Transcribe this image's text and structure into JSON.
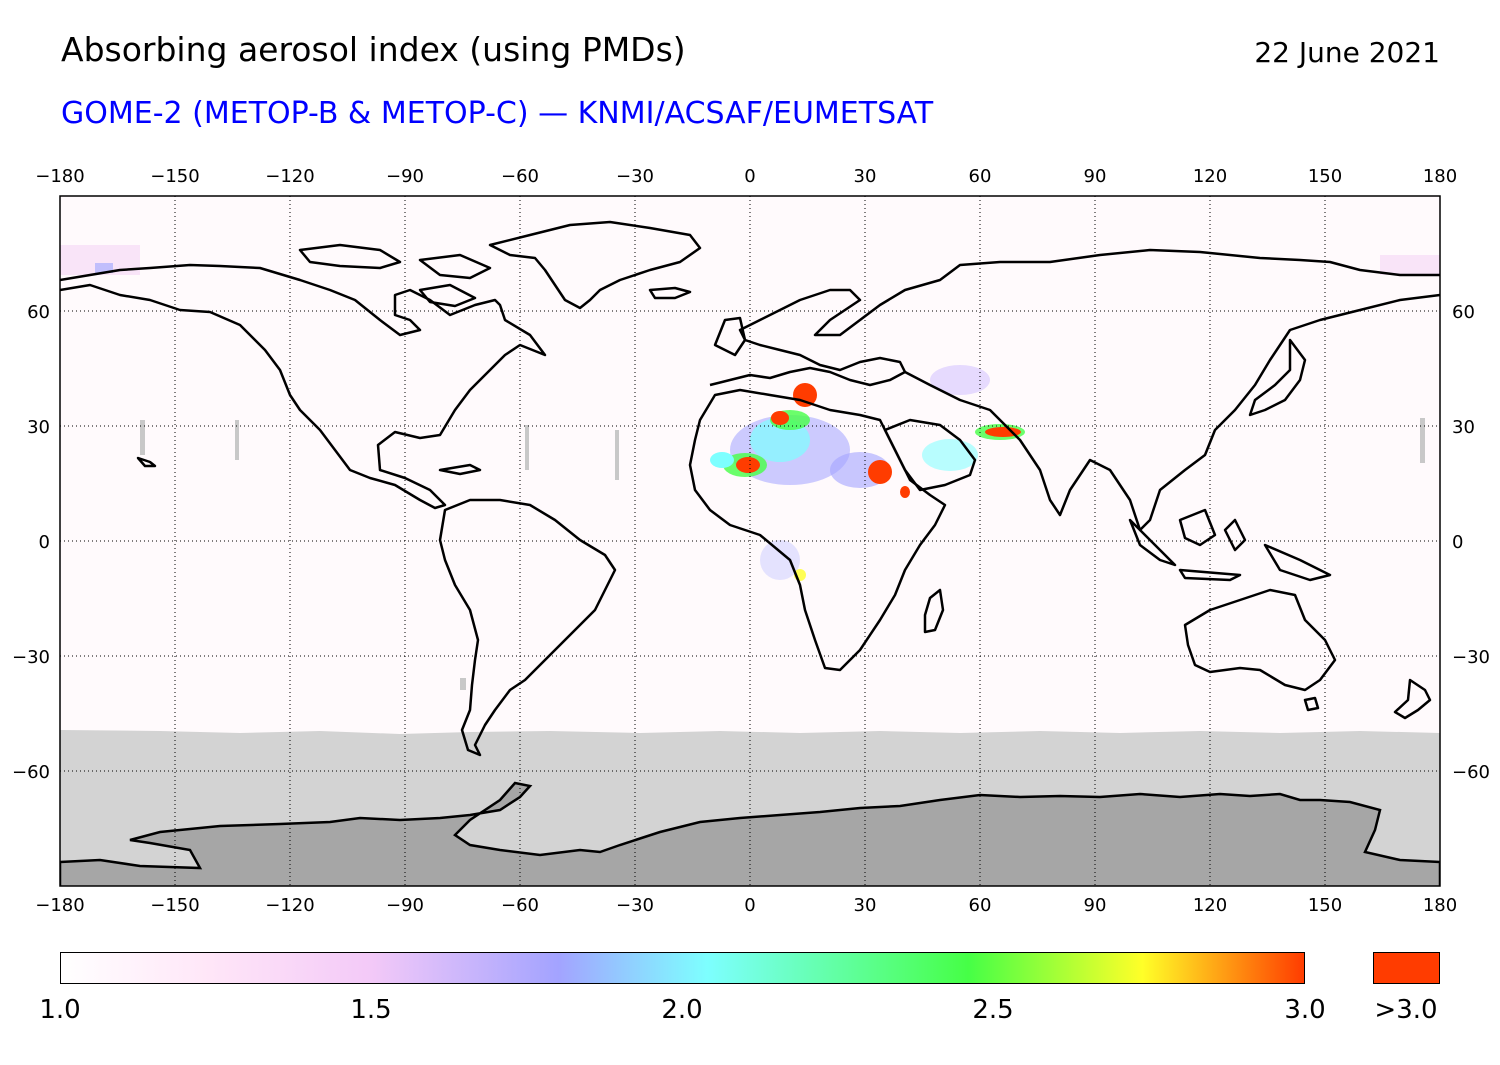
{
  "header": {
    "title": "Absorbing aerosol index (using PMDs)",
    "date": "22 June 2021",
    "subtitle": "GOME-2 (METOP-B & METOP-C) — KNMI/ACSAF/EUMETSAT"
  },
  "map": {
    "projection": "equirectangular",
    "lon_range": [
      -180,
      180
    ],
    "lat_range": [
      -90,
      90
    ],
    "lon_ticks": [
      "−180",
      "−150",
      "−120",
      "−90",
      "−60",
      "−30",
      "0",
      "30",
      "60",
      "90",
      "120",
      "150",
      "180"
    ],
    "lat_ticks": [
      "60",
      "30",
      "0",
      "−30",
      "−60"
    ],
    "grid": "dotted",
    "no_data_color": "#d3d3d3",
    "land_no_data_color": "#a6a6a6",
    "coastline_color": "#000000"
  },
  "colorbar": {
    "range": [
      1.0,
      3.0
    ],
    "labels": [
      "1.0",
      "1.5",
      "2.0",
      "2.5",
      "3.0"
    ],
    "overflow_label": ">3.0",
    "overflow_color": "#ff3c00",
    "stops": [
      "#ffffff",
      "#ffcdf5",
      "#9ba5ff",
      "#7dffff",
      "#46ff46",
      "#ffff28",
      "#ff3c00"
    ]
  }
}
